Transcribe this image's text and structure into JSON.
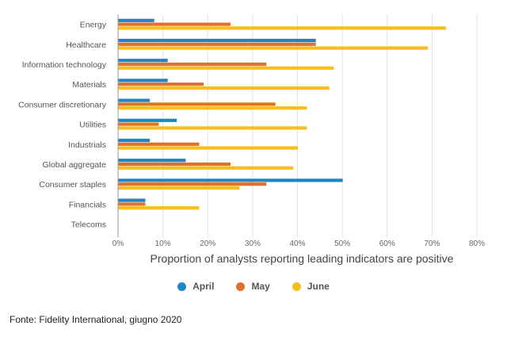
{
  "chart_data": {
    "type": "bar",
    "orientation": "horizontal",
    "categories": [
      "Energy",
      "Healthcare",
      "Information technology",
      "Materials",
      "Consumer discretionary",
      "Utilities",
      "Industrials",
      "Global aggregate",
      "Consumer staples",
      "Financials",
      "Telecoms"
    ],
    "series": [
      {
        "name": "April",
        "color": "#1F86C4",
        "values": [
          8,
          44,
          11,
          11,
          7,
          13,
          7,
          15,
          50,
          6,
          0
        ]
      },
      {
        "name": "May",
        "color": "#E0702E",
        "values": [
          25,
          44,
          33,
          19,
          35,
          9,
          18,
          25,
          33,
          6,
          0
        ]
      },
      {
        "name": "June",
        "color": "#F8BE1E",
        "values": [
          73,
          69,
          48,
          47,
          42,
          42,
          40,
          39,
          27,
          18,
          0
        ]
      }
    ],
    "xlabel": "Proportion of analysts reporting leading indicators are positive",
    "xlim": [
      0,
      80
    ],
    "xticks": [
      "0%",
      "10%",
      "20%",
      "30%",
      "40%",
      "50%",
      "60%",
      "70%",
      "80%"
    ],
    "grid": "vertical",
    "legend": "bottom"
  },
  "source": "Fonte: Fidelity International, giugno 2020"
}
